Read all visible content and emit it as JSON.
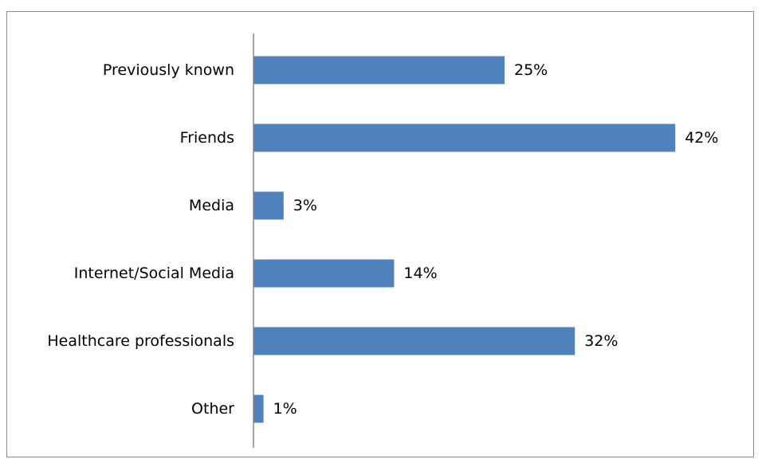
{
  "chart_data": {
    "type": "bar",
    "orientation": "horizontal",
    "categories": [
      "Previously known",
      "Friends",
      "Media",
      "Internet/Social Media",
      "Healthcare professionals",
      "Other"
    ],
    "values": [
      25,
      42,
      3,
      14,
      32,
      1
    ],
    "value_labels": [
      "25%",
      "42%",
      "3%",
      "14%",
      "32%",
      "1%"
    ],
    "unit": "%",
    "bar_color": "#4f81bd",
    "grid": false,
    "legend": "none",
    "title": "",
    "xlabel": "",
    "ylabel": ""
  }
}
